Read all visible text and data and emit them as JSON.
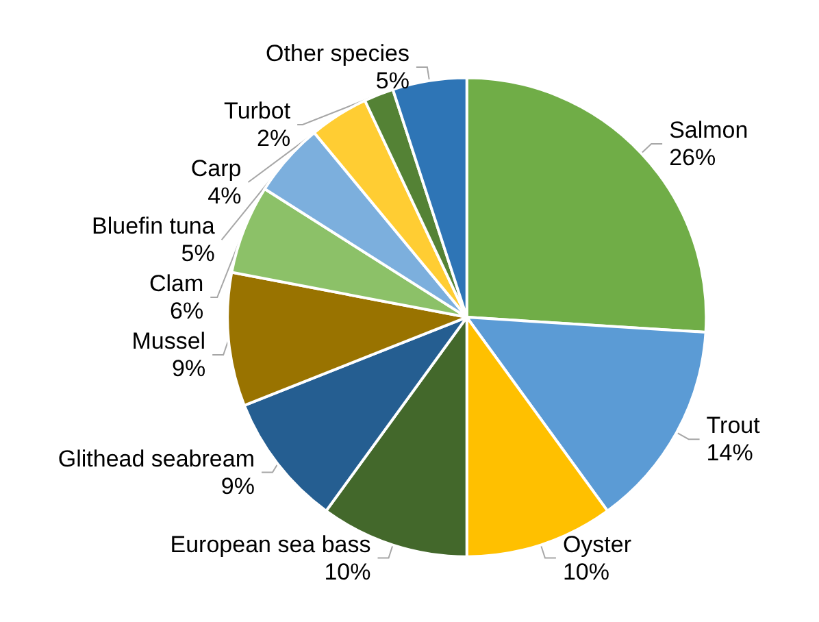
{
  "chart_data": {
    "type": "pie",
    "categories": [
      "Salmon",
      "Trout",
      "Oyster",
      "European sea bass",
      "Glithead seabream",
      "Mussel",
      "Clam",
      "Bluefin tuna",
      "Carp",
      "Turbot",
      "Other species"
    ],
    "values": [
      26,
      14,
      10,
      10,
      9,
      9,
      6,
      5,
      4,
      2,
      5
    ],
    "value_labels": [
      "26%",
      "14%",
      "10%",
      "10%",
      "9%",
      "9%",
      "6%",
      "5%",
      "4%",
      "2%",
      "5%"
    ],
    "colors": [
      "#70ad47",
      "#5b9bd5",
      "#ffc000",
      "#43682b",
      "#255e91",
      "#997300",
      "#8cc168",
      "#7cafdd",
      "#ffcd33",
      "#548235",
      "#2e75b6"
    ],
    "legend": false
  }
}
